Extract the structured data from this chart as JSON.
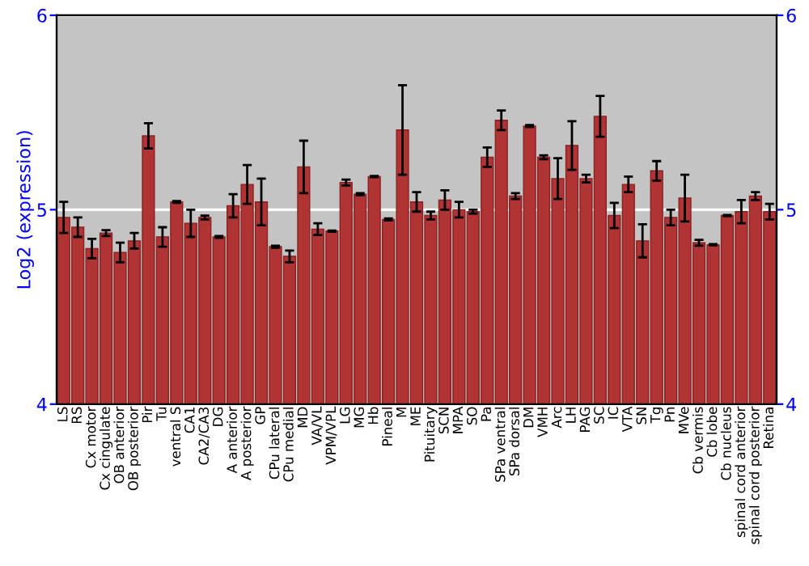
{
  "chart_data": {
    "type": "bar",
    "ylabel": "Log2 (expression)",
    "color": "#b03434",
    "categories": [
      "LS",
      "RS",
      "Cx motor",
      "Cx cingulate",
      "OB anterior",
      "OB posterior",
      "Pir",
      "Tu",
      "ventral S",
      "CA1",
      "CA2/CA3",
      "DG",
      "A anterior",
      "A posterior",
      "GP",
      "CPu lateral",
      "CPu medial",
      "MD",
      "VA/VL",
      "VPM/VPL",
      "LG",
      "MG",
      "Hb",
      "Pineal",
      "M",
      "ME",
      "Pituitary",
      "SCN",
      "MPA",
      "SO",
      "Pa",
      "SPa ventral",
      "SPa dorsal",
      "DM",
      "VMH",
      "Arc",
      "LH",
      "PAG",
      "SC",
      "IC",
      "VTA",
      "SN",
      "Tg",
      "Pn",
      "MVe",
      "Cb vermis",
      "Cb lobe",
      "Cb nucleus",
      "spinal cord anterior",
      "spinal cord posterior",
      "Retina"
    ],
    "values": [
      4.96,
      4.91,
      4.8,
      4.88,
      4.78,
      4.84,
      5.38,
      4.86,
      5.04,
      4.93,
      4.96,
      4.86,
      5.02,
      5.13,
      5.04,
      4.81,
      4.76,
      5.22,
      4.9,
      4.89,
      5.14,
      5.08,
      5.17,
      4.95,
      5.41,
      5.04,
      4.97,
      5.05,
      5.0,
      4.99,
      5.27,
      5.46,
      5.07,
      5.43,
      5.27,
      5.16,
      5.33,
      5.16,
      5.48,
      4.97,
      5.13,
      4.84,
      5.2,
      4.96,
      5.06,
      4.83,
      4.82,
      4.97,
      4.99,
      5.07,
      4.99
    ],
    "errors": [
      0.08,
      0.05,
      0.05,
      0.015,
      0.05,
      0.04,
      0.065,
      0.05,
      0.005,
      0.07,
      0.01,
      0.005,
      0.06,
      0.1,
      0.12,
      0.005,
      0.03,
      0.135,
      0.03,
      0.003,
      0.015,
      0.005,
      0.003,
      0.005,
      0.23,
      0.05,
      0.02,
      0.05,
      0.04,
      0.01,
      0.05,
      0.05,
      0.015,
      0.005,
      0.01,
      0.105,
      0.125,
      0.02,
      0.105,
      0.065,
      0.04,
      0.085,
      0.05,
      0.04,
      0.12,
      0.015,
      0.003,
      0.003,
      0.06,
      0.02,
      0.04
    ],
    "ylim": [
      4,
      6
    ],
    "yticks": [
      4,
      5,
      6
    ],
    "y2lim": [
      4,
      6
    ],
    "y2ticks": [
      4,
      5,
      6
    ],
    "grid": "y"
  }
}
